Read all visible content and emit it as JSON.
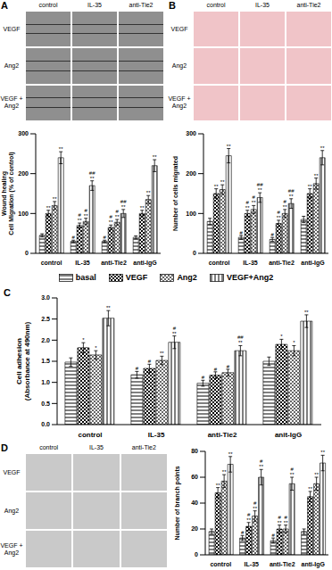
{
  "image_panels": [
    {
      "label": "A",
      "columns": [
        "control",
        "IL-35",
        "anti-Tie2"
      ],
      "rows": [
        "VEGF",
        "Ang2",
        "VEGF + Ang2"
      ]
    },
    {
      "label": "B",
      "columns": [
        "control",
        "IL-35",
        "anti-Tie2"
      ],
      "rows": [
        "VEGF",
        "Ang2",
        "VEGF + Ang2"
      ]
    },
    {
      "label": "D",
      "columns": [
        "control",
        "IL-35",
        "anti-Tie2"
      ],
      "rows": [
        "VEGF",
        "Ang2",
        "VEGF + Ang2"
      ]
    }
  ],
  "chart_data": [
    {
      "type": "bar",
      "title": "A",
      "y_label": "Wound healing\nCell Migration (% of control)",
      "categories": [
        "control",
        "IL-35",
        "anti-Tie2",
        "anti-IgG"
      ],
      "ylim": [
        0,
        300
      ],
      "yticks": [
        0,
        100,
        200,
        300
      ],
      "series": [
        {
          "name": "basal",
          "color": "#000000",
          "values": [
            45,
            30,
            30,
            40
          ],
          "errors": [
            4,
            3,
            3,
            4
          ],
          "annotations": [
            null,
            [
              "#"
            ],
            [
              "#"
            ],
            null
          ]
        },
        {
          "name": "VEGF",
          "color": "#000000",
          "values": [
            100,
            70,
            65,
            100
          ],
          "errors": [
            8,
            6,
            6,
            8
          ],
          "annotations": [
            [
              "**"
            ],
            [
              "#",
              "**"
            ],
            [
              "#",
              "**"
            ],
            [
              "**"
            ]
          ]
        },
        {
          "name": "Ang2",
          "color": "#000000",
          "values": [
            120,
            80,
            78,
            135
          ],
          "errors": [
            10,
            8,
            7,
            10
          ],
          "annotations": [
            [
              "**"
            ],
            [
              "#",
              "**"
            ],
            [
              "#",
              "**"
            ],
            [
              "**"
            ]
          ]
        },
        {
          "name": "VEGF+Ang2",
          "color": "#000000",
          "values": [
            240,
            170,
            100,
            220
          ],
          "errors": [
            15,
            12,
            10,
            15
          ],
          "annotations": [
            [
              "**"
            ],
            [
              "##",
              "**"
            ],
            [
              "##",
              "**"
            ],
            [
              "**"
            ]
          ]
        }
      ]
    },
    {
      "type": "bar",
      "title": "B",
      "y_label": "Number of cells migrated",
      "categories": [
        "control",
        "IL-35",
        "anti-Tie2",
        "anti-IgG"
      ],
      "ylim": [
        0,
        300
      ],
      "yticks": [
        0,
        100,
        200,
        300
      ],
      "series": [
        {
          "name": "basal",
          "color": "#000000",
          "values": [
            80,
            40,
            35,
            85
          ],
          "errors": [
            8,
            5,
            5,
            8
          ],
          "annotations": [
            null,
            [
              "#"
            ],
            [
              "#"
            ],
            null
          ]
        },
        {
          "name": "VEGF",
          "color": "#000000",
          "values": [
            150,
            100,
            75,
            150
          ],
          "errors": [
            12,
            8,
            8,
            12
          ],
          "annotations": [
            [
              "**"
            ],
            [
              "#",
              "**"
            ],
            [
              "#",
              "**"
            ],
            [
              "**"
            ]
          ]
        },
        {
          "name": "Ang2",
          "color": "#000000",
          "values": [
            160,
            110,
            100,
            175
          ],
          "errors": [
            12,
            10,
            10,
            14
          ],
          "annotations": [
            [
              "**"
            ],
            [
              "#",
              "**"
            ],
            [
              "#",
              "**"
            ],
            [
              "**"
            ]
          ]
        },
        {
          "name": "VEGF+Ang2",
          "color": "#000000",
          "values": [
            245,
            140,
            125,
            240
          ],
          "errors": [
            18,
            12,
            12,
            18
          ],
          "annotations": [
            [
              "**"
            ],
            [
              "##",
              "**"
            ],
            [
              "##",
              "**"
            ],
            [
              "**"
            ]
          ]
        }
      ]
    },
    {
      "type": "bar",
      "title": "C",
      "y_label": "Cell adhesion\n(Absorbance at 490nm)",
      "legend": "top",
      "categories": [
        "control",
        "IL-35",
        "anti-Tie2",
        "anit-IgG"
      ],
      "ylim": [
        0,
        3
      ],
      "yticks": [
        {
          "value": 0,
          "label": "0.0"
        },
        0.5,
        {
          "value": 1,
          "label": "1.0"
        },
        1.5,
        {
          "value": 2,
          "label": "2.0"
        },
        2.5,
        {
          "value": 3,
          "label": "3.0"
        }
      ],
      "series": [
        {
          "name": "basal",
          "color": "#000000",
          "values": [
            1.48,
            1.18,
            0.98,
            1.5
          ],
          "errors": [
            0.1,
            0.08,
            0.07,
            0.1
          ],
          "annotations": [
            null,
            [
              "#"
            ],
            [
              "#"
            ],
            null
          ]
        },
        {
          "name": "VEGF",
          "color": "#000000",
          "values": [
            1.82,
            1.33,
            1.17,
            1.9
          ],
          "errors": [
            0.12,
            0.1,
            0.08,
            0.12
          ],
          "annotations": [
            [
              "*"
            ],
            [
              "#"
            ],
            [
              "#"
            ],
            [
              "*"
            ]
          ]
        },
        {
          "name": "Ang2",
          "color": "#000000",
          "values": [
            1.65,
            1.52,
            1.23,
            1.75
          ],
          "errors": [
            0.1,
            0.1,
            0.08,
            0.12
          ],
          "annotations": [
            [
              "*"
            ],
            [
              "**"
            ],
            [
              "#"
            ],
            [
              "*"
            ]
          ]
        },
        {
          "name": "VEGF+Ang2",
          "color": "#000000",
          "values": [
            2.52,
            1.95,
            1.75,
            2.45
          ],
          "errors": [
            0.18,
            0.15,
            0.12,
            0.15
          ],
          "annotations": [
            [
              "**"
            ],
            [
              "#",
              "**"
            ],
            [
              "##",
              "**"
            ],
            [
              "**"
            ]
          ]
        }
      ]
    },
    {
      "type": "bar",
      "title": "D",
      "y_label": "Number of branch points",
      "categories": [
        "control",
        "IL-35",
        "anti-Tie2",
        "anti-IgG"
      ],
      "ylim": [
        0,
        80
      ],
      "yticks": [
        0,
        20,
        40,
        60,
        80
      ],
      "series": [
        {
          "name": "basal",
          "color": "#000000",
          "values": [
            18,
            13,
            11,
            18
          ],
          "errors": [
            2,
            2,
            2,
            2
          ],
          "annotations": [
            null,
            [
              "#"
            ],
            [
              "#"
            ],
            null
          ]
        },
        {
          "name": "VEGF",
          "color": "#000000",
          "values": [
            48,
            22,
            20,
            45
          ],
          "errors": [
            4,
            3,
            3,
            4
          ],
          "annotations": [
            [
              "**"
            ],
            [
              "#",
              "**"
            ],
            [
              "#",
              "**"
            ],
            [
              "**"
            ]
          ]
        },
        {
          "name": "Ang2",
          "color": "#000000",
          "values": [
            57,
            30,
            20,
            55
          ],
          "errors": [
            5,
            4,
            3,
            5
          ],
          "annotations": [
            [
              "**"
            ],
            [
              "#",
              "**"
            ],
            [
              "#",
              "**"
            ],
            [
              "**"
            ]
          ]
        },
        {
          "name": "VEGF+Ang2",
          "color": "#000000",
          "values": [
            70,
            60,
            55,
            71
          ],
          "errors": [
            6,
            6,
            5,
            6
          ],
          "annotations": [
            [
              "**"
            ],
            [
              "#",
              "**"
            ],
            [
              "#",
              "**"
            ],
            [
              "**"
            ]
          ]
        }
      ]
    }
  ]
}
